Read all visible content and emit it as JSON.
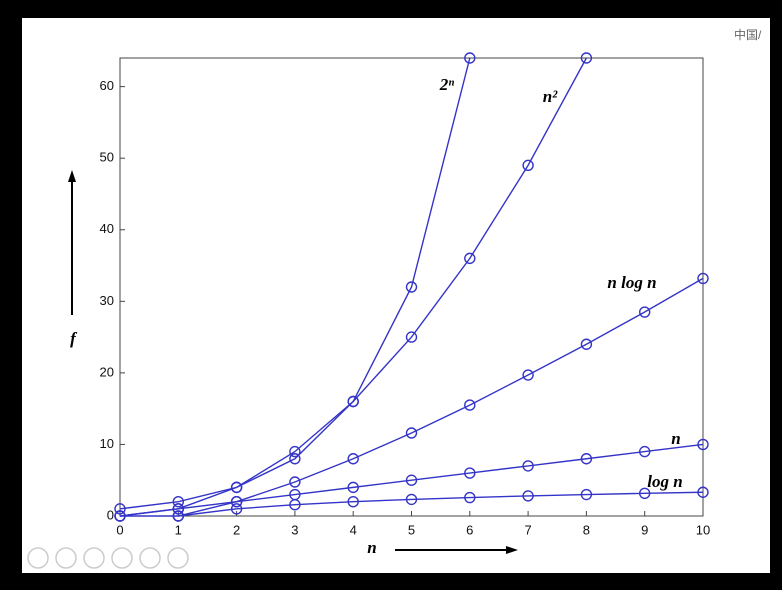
{
  "chart_data": {
    "type": "line",
    "x": [
      0,
      1,
      2,
      3,
      4,
      5,
      6,
      7,
      8,
      9,
      10
    ],
    "series": [
      {
        "name": "2ⁿ",
        "color": "#3434c8",
        "values": [
          1,
          2,
          4,
          8,
          16,
          32,
          64,
          null,
          null,
          null,
          null
        ]
      },
      {
        "name": "n²",
        "color": "#3434c8",
        "values": [
          0,
          1,
          4,
          9,
          16,
          25,
          36,
          49,
          64,
          null,
          null
        ]
      },
      {
        "name": "n log n",
        "color": "#3434c8",
        "values": [
          0,
          0,
          2,
          4.75,
          8,
          11.6,
          15.5,
          19.7,
          24,
          28.5,
          33.2
        ]
      },
      {
        "name": "n",
        "color": "#3434c8",
        "values": [
          0,
          1,
          2,
          3,
          4,
          5,
          6,
          7,
          8,
          9,
          10
        ]
      },
      {
        "name": "log n",
        "color": "#3434c8",
        "values": [
          null,
          0,
          1,
          1.58,
          2,
          2.32,
          2.58,
          2.81,
          3,
          3.17,
          3.32
        ]
      }
    ],
    "xlabel": "n",
    "ylabel": "f",
    "xlim": [
      0,
      10
    ],
    "ylim": [
      0,
      64
    ],
    "xticks": [
      0,
      1,
      2,
      3,
      4,
      5,
      6,
      7,
      8,
      9,
      10
    ],
    "yticks": [
      0,
      10,
      20,
      30,
      40,
      50,
      60
    ],
    "watermark": "中国/"
  }
}
